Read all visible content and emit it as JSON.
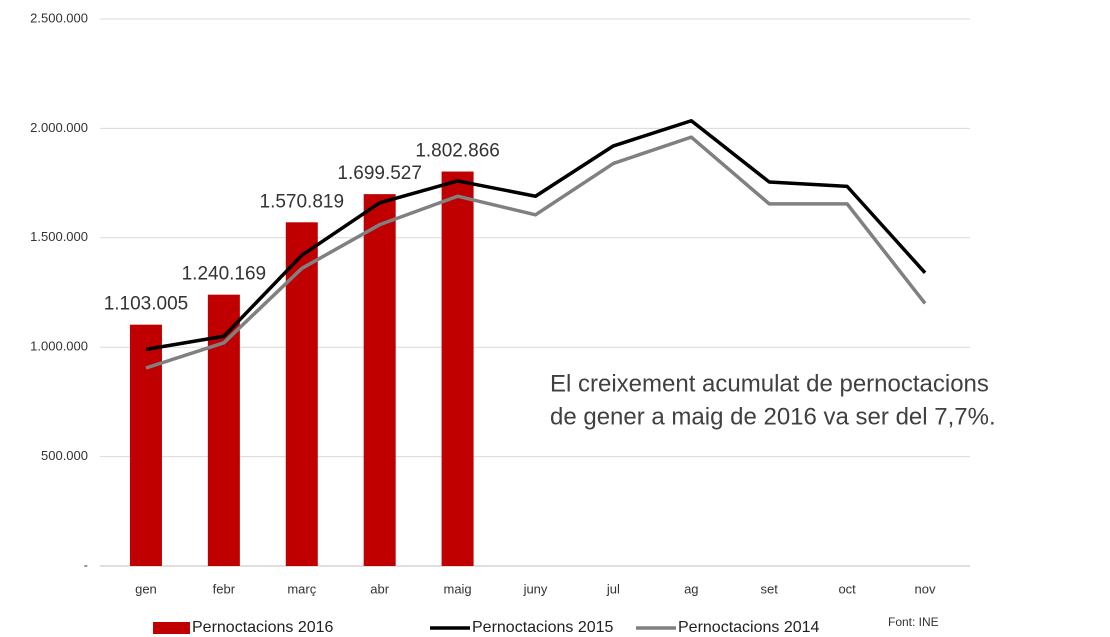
{
  "chart_data": {
    "type": "bar",
    "categories": [
      "gen",
      "febr",
      "març",
      "abr",
      "maig",
      "juny",
      "jul",
      "ag",
      "set",
      "oct",
      "nov"
    ],
    "series": [
      {
        "name": "Pernoctacions 2016",
        "type": "bar",
        "color": "#c00000",
        "values": [
          1103005,
          1240169,
          1570819,
          1699527,
          1802866,
          null,
          null,
          null,
          null,
          null,
          null
        ],
        "value_labels": [
          "1.103.005",
          "1.240.169",
          "1.570.819",
          "1.699.527",
          "1.802.866",
          null,
          null,
          null,
          null,
          null,
          null
        ]
      },
      {
        "name": "Pernoctacions 2015",
        "type": "line",
        "color": "#000000",
        "values": [
          990000,
          1050000,
          1420000,
          1660000,
          1760000,
          1690000,
          1920000,
          2035000,
          1755000,
          1735000,
          1340000
        ]
      },
      {
        "name": "Pernoctacions 2014",
        "type": "line",
        "color": "#808080",
        "values": [
          905000,
          1020000,
          1360000,
          1560000,
          1690000,
          1605000,
          1840000,
          1960000,
          1655000,
          1655000,
          1200000
        ]
      }
    ],
    "ylim": [
      0,
      2500000
    ],
    "yticks": [
      {
        "value": 0,
        "label": "-"
      },
      {
        "value": 500000,
        "label": "500.000"
      },
      {
        "value": 1000000,
        "label": "1.000.000"
      },
      {
        "value": 1500000,
        "label": "1.500.000"
      },
      {
        "value": 2000000,
        "label": "2.000.000"
      },
      {
        "value": 2500000,
        "label": "2.500.000"
      }
    ],
    "grid": true,
    "legend": "bottom",
    "annotations": [
      "El creixement acumulat de pernoctacions",
      "de gener a maig de 2016 va ser del 7,7%."
    ],
    "source": "Font: INE"
  }
}
